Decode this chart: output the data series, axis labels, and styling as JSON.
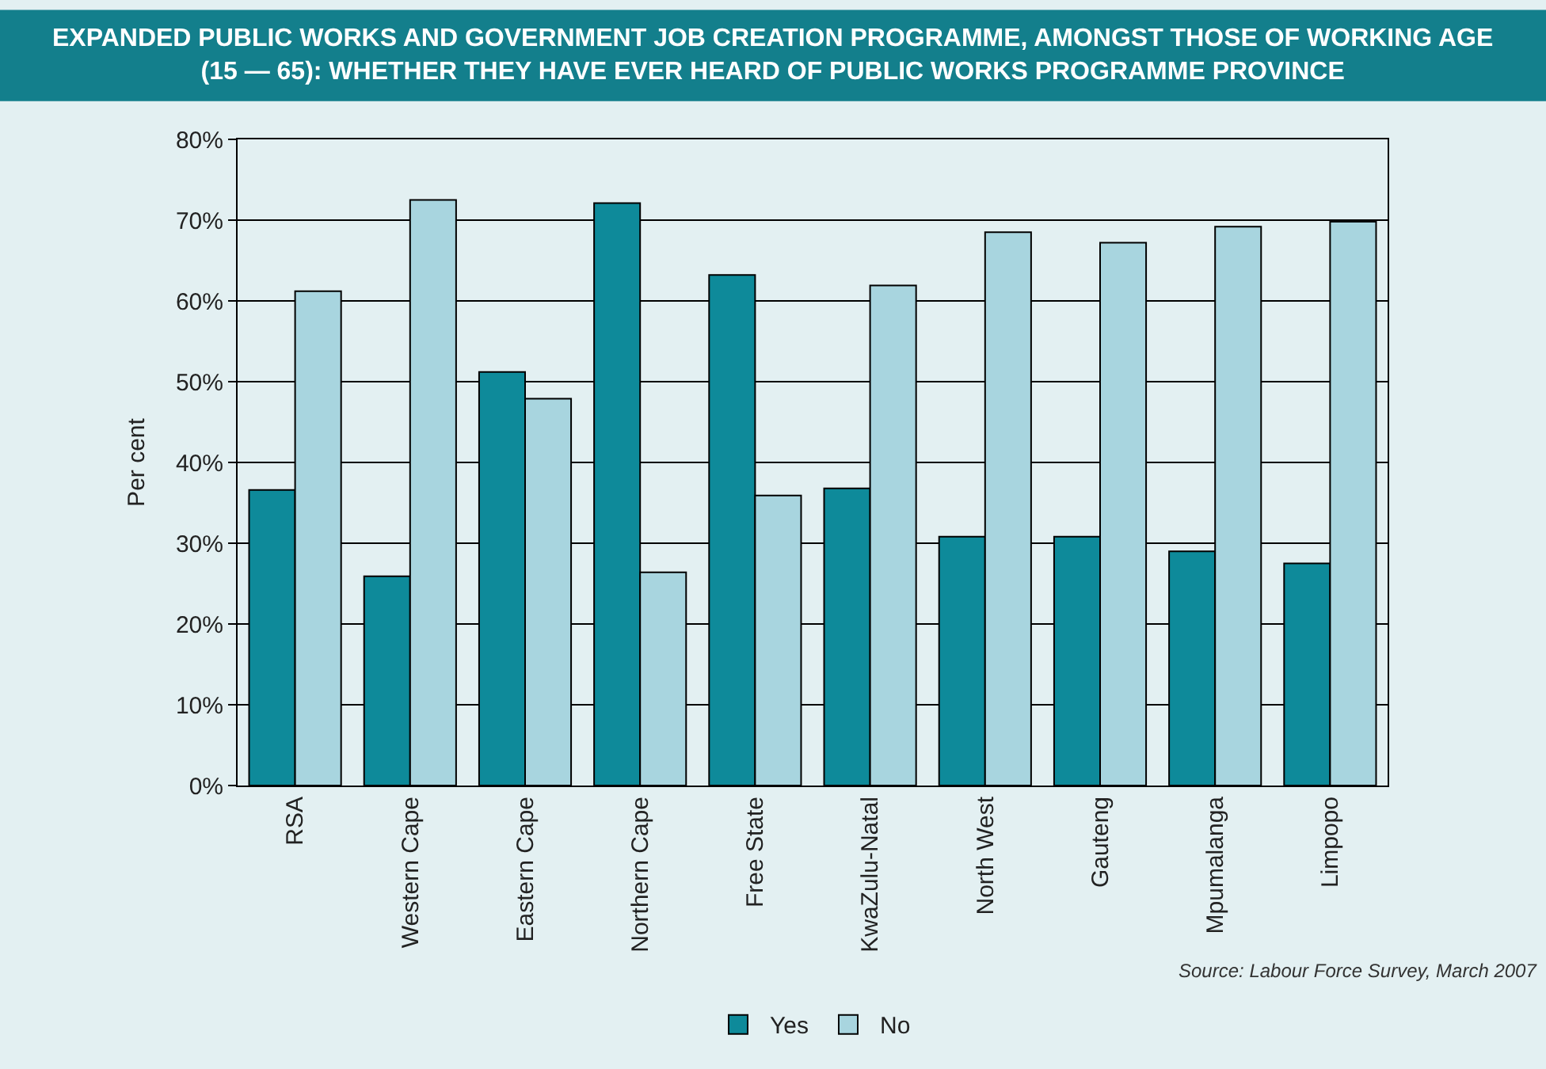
{
  "chart_data": {
    "type": "bar",
    "title": "EXPANDED PUBLIC WORKS AND GOVERNMENT JOB CREATION PROGRAMME, AMONGST THOSE OF WORKING AGE (15 — 65): WHETHER THEY HAVE EVER HEARD OF PUBLIC WORKS PROGRAMME PROVINCE",
    "ylabel": "Per cent",
    "categories": [
      "RSA",
      "Western Cape",
      "Eastern Cape",
      "Northern Cape",
      "Free State",
      "KwaZulu-Natal",
      "North West",
      "Gauteng",
      "Mpumalanga",
      "Limpopo"
    ],
    "series": [
      {
        "name": "Yes",
        "color": "#0e8a9a",
        "values": [
          36.6,
          25.9,
          51.2,
          72.1,
          63.2,
          36.8,
          30.8,
          30.8,
          29.0,
          27.5
        ]
      },
      {
        "name": "No",
        "color": "#a8d5df",
        "values": [
          61.2,
          72.5,
          47.9,
          26.4,
          35.9,
          61.9,
          68.5,
          67.2,
          69.2,
          69.8
        ]
      }
    ],
    "ylim": [
      0,
      80
    ],
    "yticks": [
      {
        "value": 0,
        "label": "0%"
      },
      {
        "value": 10,
        "label": "10%"
      },
      {
        "value": 20,
        "label": "20%"
      },
      {
        "value": 30,
        "label": "30%"
      },
      {
        "value": 40,
        "label": "40%"
      },
      {
        "value": 50,
        "label": "50%"
      },
      {
        "value": 60,
        "label": "60%"
      },
      {
        "value": 70,
        "label": "70%"
      },
      {
        "value": 80,
        "label": "80%"
      }
    ],
    "grid": "y",
    "legend": "bottom",
    "annotations": [
      "Source: Labour Force Survey, March 2007"
    ]
  }
}
